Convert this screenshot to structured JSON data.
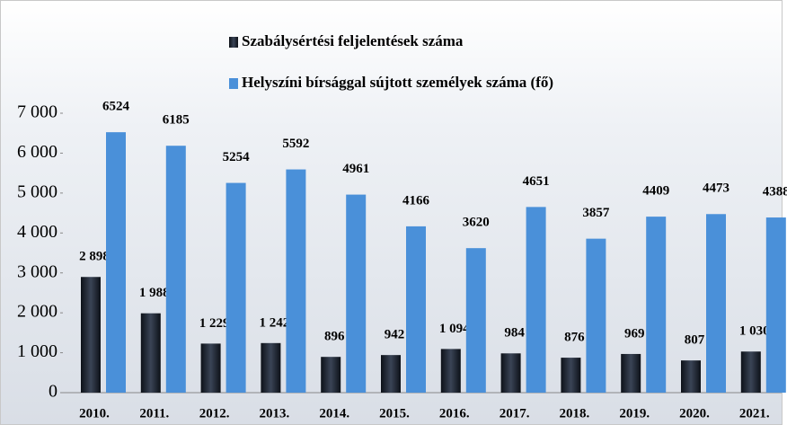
{
  "chart_data": {
    "type": "bar",
    "categories": [
      "2010.",
      "2011.",
      "2012.",
      "2013.",
      "2014.",
      "2015.",
      "2016.",
      "2017.",
      "2018.",
      "2019.",
      "2020.",
      "2021."
    ],
    "series": [
      {
        "name": "Szabálysértési feljelentések száma",
        "color": "#1c2330",
        "values": [
          2898,
          1988,
          1229,
          1242,
          896,
          942,
          1094,
          984,
          876,
          969,
          807,
          1030
        ],
        "value_labels": [
          "2 898",
          "1 988",
          "1 229",
          "1 242",
          "896",
          "942",
          "1 094",
          "984",
          "876",
          "969",
          "807",
          "1 030"
        ]
      },
      {
        "name": "Helyszíni bírsággal sújtott személyek száma (fő)",
        "color": "#4a90d9",
        "values": [
          6524,
          6185,
          5254,
          5592,
          4961,
          4166,
          3620,
          4651,
          3857,
          4409,
          4473,
          4388
        ]
      }
    ],
    "ylim": [
      0,
      7000
    ],
    "yticks": [
      0,
      {
        "value": 1000,
        "label": "1 000"
      },
      {
        "value": 2000,
        "label": "2 000"
      },
      {
        "value": 3000,
        "label": "3 000"
      },
      {
        "value": 4000,
        "label": "4 000"
      },
      {
        "value": 5000,
        "label": "5 000"
      },
      {
        "value": 6000,
        "label": "6 000"
      },
      {
        "value": 7000,
        "label": "7 000"
      }
    ]
  }
}
